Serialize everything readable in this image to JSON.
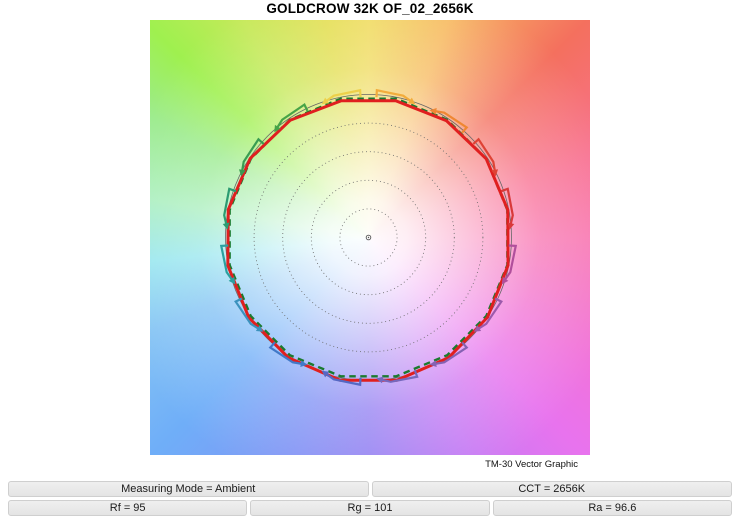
{
  "header": {
    "title": "GOLDCROW 32K OF_02_2656K"
  },
  "chart_caption": "TM-30 Vector Graphic",
  "info_bars": {
    "row1": [
      {
        "label": "Measuring Mode = Ambient"
      },
      {
        "label": "CCT = 2656K"
      }
    ],
    "row2": [
      {
        "label": "Rf = 95"
      },
      {
        "label": "Rg = 101"
      },
      {
        "label": "Ra = 96.6"
      }
    ]
  },
  "chart_data": {
    "type": "tm30-vector",
    "title": "GOLDCROW 32K OF_02_2656K",
    "caption": "TM-30 Vector Graphic",
    "metrics": {
      "rf": 95,
      "rg": 101,
      "ra": 96.6,
      "cct_k": 2656,
      "measuring_mode": "Ambient"
    },
    "reference_radius_pct": 100,
    "grid_circles_pct": [
      20,
      40,
      60,
      80
    ],
    "grid_circle_color": "#6b6b6b",
    "center_marker_color": "#555555",
    "reference_circle_color": "#666666",
    "reference_dashed_color": "#1B7A2F",
    "reference_dashed_radius_pct": 99,
    "test_curve_color": "#E01F1F",
    "bins": [
      {
        "bin": 1,
        "hue_angle_deg": 11.25,
        "test_radius_pct": 99.3,
        "arrow_dir": "cw",
        "color": "#D8393A"
      },
      {
        "bin": 2,
        "hue_angle_deg": 33.75,
        "test_radius_pct": 99.0,
        "arrow_dir": "cw",
        "color": "#DE4335"
      },
      {
        "bin": 3,
        "hue_angle_deg": 56.25,
        "test_radius_pct": 98.2,
        "arrow_dir": "ccw",
        "color": "#EF8733"
      },
      {
        "bin": 4,
        "hue_angle_deg": 78.75,
        "test_radius_pct": 97.5,
        "arrow_dir": "cw",
        "color": "#F2AC3C"
      },
      {
        "bin": 5,
        "hue_angle_deg": 101.25,
        "test_radius_pct": 97.5,
        "arrow_dir": "ccw",
        "color": "#EDD04A"
      },
      {
        "bin": 6,
        "hue_angle_deg": 123.75,
        "test_radius_pct": 98.6,
        "arrow_dir": "ccw",
        "color": "#47A447"
      },
      {
        "bin": 7,
        "hue_angle_deg": 146.25,
        "test_radius_pct": 99.5,
        "arrow_dir": "ccw",
        "color": "#3A9D52"
      },
      {
        "bin": 8,
        "hue_angle_deg": 168.75,
        "test_radius_pct": 100.0,
        "arrow_dir": "ccw",
        "color": "#2C9C72"
      },
      {
        "bin": 9,
        "hue_angle_deg": 191.25,
        "test_radius_pct": 100.3,
        "arrow_dir": "ccw",
        "color": "#2BA0A0"
      },
      {
        "bin": 10,
        "hue_angle_deg": 213.75,
        "test_radius_pct": 100.7,
        "arrow_dir": "ccw",
        "color": "#3B92BE"
      },
      {
        "bin": 11,
        "hue_angle_deg": 236.25,
        "test_radius_pct": 101.0,
        "arrow_dir": "ccw",
        "color": "#4179C8"
      },
      {
        "bin": 12,
        "hue_angle_deg": 258.75,
        "test_radius_pct": 101.8,
        "arrow_dir": "cw",
        "color": "#5568C4"
      },
      {
        "bin": 13,
        "hue_angle_deg": 281.25,
        "test_radius_pct": 101.8,
        "arrow_dir": "cw",
        "color": "#7568BD"
      },
      {
        "bin": 14,
        "hue_angle_deg": 303.75,
        "test_radius_pct": 101.0,
        "arrow_dir": "cw",
        "color": "#8561B3"
      },
      {
        "bin": 15,
        "hue_angle_deg": 326.25,
        "test_radius_pct": 100.2,
        "arrow_dir": "cw",
        "color": "#9C5AAB"
      },
      {
        "bin": 16,
        "hue_angle_deg": 348.75,
        "test_radius_pct": 99.5,
        "arrow_dir": "cw",
        "color": "#B04F9C"
      }
    ]
  }
}
